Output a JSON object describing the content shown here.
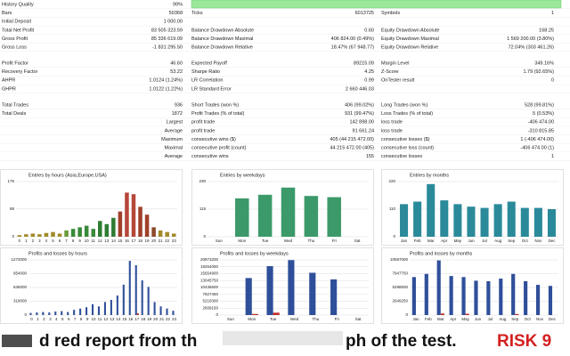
{
  "report": {
    "sections": [
      [
        [
          "History Quality",
          "99%",
          null,
          null,
          null,
          null
        ],
        [
          "Bars",
          "50368",
          "Ticks",
          "6013725",
          "Symbols",
          "1"
        ],
        [
          "Initial Deposit",
          "1 000.00",
          null,
          null,
          null,
          null
        ],
        [
          "Total Net Profit",
          "83 505 323.59",
          "Balance Drawdown Absolute",
          "0.60",
          "Equity Drawdown Absolute",
          "168.25"
        ],
        [
          "Gross Profit",
          "85 336 619.09",
          "Balance Drawdown Maximal",
          "406 824.00 (0.49%)",
          "Equity Drawdown Maximal",
          "1 569 200.00 (3.80%)"
        ],
        [
          "Gross Loss",
          "-1 831 295.50",
          "Balance Drawdown Relative",
          "18.47% (67 948.77)",
          "Equity Drawdown Relative",
          "72.04% (303 461.26)"
        ]
      ],
      [
        [
          "Profit Factor",
          "46.60",
          "Expected Payoff",
          "89215.09",
          "Margin Level",
          "349.16%"
        ],
        [
          "Recovery Factor",
          "53.22",
          "Sharpe Ratio",
          "4.25",
          "Z-Score",
          "1.79 (92.65%)"
        ],
        [
          "AHPR",
          "1.0124 (1.24%)",
          "LR Correlation",
          "0.99",
          "OnTester result",
          "0"
        ],
        [
          "GHPR",
          "1.0122 (1.22%)",
          "LR Standard Error",
          "2 660 446.03",
          null,
          null
        ]
      ],
      [
        [
          "Total Trades",
          "936",
          "Short Trades (won %)",
          "406 (99.02%)",
          "Long Trades (won %)",
          "528 (99.81%)"
        ],
        [
          "Total Deals",
          "1872",
          "Profit Trades (% of total)",
          "931 (99.47%)",
          "Loss Trades (% of total)",
          "5 (0.53%)"
        ],
        [
          "Largest",
          null,
          "profit trade",
          "142 898.00",
          "loss trade",
          "-406 474.00"
        ],
        [
          "Average",
          null,
          "profit trade",
          "91 661.24",
          "loss trade",
          "-310 815.85"
        ],
        [
          "Maximum",
          null,
          "consecutive wins ($)",
          "405 (44 215 472.00)",
          "consecutive losses ($)",
          "1 (-406 474.00)"
        ],
        [
          "Maximal",
          null,
          "consecutive profit (count)",
          "44 215 472.00 (405)",
          "consecutive loss (count)",
          "-406 474.00 (1)"
        ],
        [
          "Average",
          null,
          "consecutive wins",
          "155",
          "consecutive losses",
          "1"
        ]
      ]
    ]
  },
  "charts": [
    {
      "type": "bar",
      "title": "Entries by hours (Asia,Europe,USA)",
      "categories": [
        "0",
        "1",
        "2",
        "3",
        "4",
        "5",
        "6",
        "7",
        "8",
        "9",
        "10",
        "11",
        "12",
        "13",
        "14",
        "15",
        "16",
        "17",
        "18",
        "19",
        "20",
        "21",
        "22",
        "23"
      ],
      "series": [
        {
          "values": [
            5,
            8,
            10,
            8,
            12,
            15,
            10,
            20,
            25,
            30,
            35,
            25,
            50,
            40,
            60,
            80,
            140,
            135,
            95,
            70,
            30,
            20,
            15,
            10
          ],
          "colors": [
            "#a08a2a",
            "#a08a2a",
            "#a08a2a",
            "#a08a2a",
            "#a08a2a",
            "#a08a2a",
            "#a08a2a",
            "#6a9a3a",
            "#3a8a3a",
            "#3a8a3a",
            "#3a8a3a",
            "#3a8a3a",
            "#2e7d32",
            "#2e7d32",
            "#2e7d32",
            "#a0402a",
            "#b5473a",
            "#b5473a",
            "#a0402a",
            "#a0402a",
            "#8a4a2a",
            "#a08a2a",
            "#a08a2a",
            "#a08a2a"
          ]
        }
      ],
      "ylim": [
        0,
        175
      ],
      "yticks": [
        0,
        88,
        175
      ]
    },
    {
      "type": "bar",
      "title": "Entries by weekdays",
      "categories": [
        "Sun",
        "Mon",
        "Tue",
        "Wed",
        "Thu",
        "Fri",
        "Sat"
      ],
      "series": [
        {
          "color": "#3c9a6a",
          "values": [
            0,
            160,
            175,
            205,
            170,
            165,
            0
          ]
        }
      ],
      "ylim": [
        0,
        230
      ],
      "yticks": [
        0,
        115,
        230
      ]
    },
    {
      "type": "bar",
      "title": "Entries by months",
      "categories": [
        "Jan",
        "Feb",
        "Mar",
        "Apr",
        "May",
        "Jun",
        "Jul",
        "Aug",
        "Sep",
        "Oct",
        "Nov",
        "Dec"
      ],
      "series": [
        {
          "color": "#2a8a9a",
          "values": [
            130,
            140,
            210,
            145,
            130,
            120,
            115,
            130,
            140,
            115,
            115,
            110
          ]
        }
      ],
      "ylim": [
        0,
        220
      ],
      "yticks": [
        0,
        110,
        220
      ]
    },
    {
      "type": "bar",
      "title": "Profits and losses by hours",
      "categories": [
        "0",
        "1",
        "2",
        "3",
        "4",
        "5",
        "6",
        "7",
        "8",
        "9",
        "10",
        "11",
        "12",
        "13",
        "14",
        "15",
        "16",
        "17",
        "18",
        "19",
        "20",
        "21",
        "22",
        "23"
      ],
      "series": [
        {
          "color": "#2f4f9a",
          "values": [
            50000,
            60000,
            70000,
            60000,
            80000,
            90000,
            70000,
            120000,
            150000,
            180000,
            250000,
            200000,
            300000,
            350000,
            450000,
            700000,
            1250000,
            1150000,
            800000,
            650000,
            300000,
            200000,
            150000,
            100000
          ]
        },
        {
          "color": "#c0302a",
          "values": [
            0,
            0,
            0,
            0,
            0,
            0,
            0,
            0,
            0,
            0,
            0,
            0,
            0,
            0,
            0,
            0,
            0,
            40000,
            0,
            0,
            0,
            0,
            0,
            0
          ]
        }
      ],
      "ylim": [
        0,
        1272000
      ],
      "yticks": [
        0,
        318000,
        636000,
        954000,
        1272000
      ]
    },
    {
      "type": "bar",
      "title": "Profits and losses by weekdays",
      "categories": [
        "Sun",
        "Mon",
        "Tue",
        "Wed",
        "Thu",
        "Fri",
        "Sat"
      ],
      "series": [
        {
          "color": "#2f4f9a",
          "values": [
            0,
            14000000,
            18500000,
            20800000,
            16000000,
            13500000,
            0
          ]
        },
        {
          "color": "#c0302a",
          "values": [
            0,
            400000,
            900000,
            0,
            0,
            0,
            0
          ]
        }
      ],
      "ylim": [
        0,
        20873200
      ],
      "yticks": [
        0,
        2609150,
        5218300,
        7827450,
        10436600,
        13045750,
        15654900,
        18264050,
        20873200
      ]
    },
    {
      "type": "bar",
      "title": "Profits and losses by months",
      "categories": [
        "Jan",
        "Feb",
        "Mar",
        "Apr",
        "May",
        "Jun",
        "Jul",
        "Aug",
        "Sep",
        "Oct",
        "Nov",
        "Dec"
      ],
      "series": [
        {
          "color": "#2f4f9a",
          "values": [
            7300000,
            7900000,
            10500000,
            7500000,
            7300000,
            6600000,
            6500000,
            7000000,
            7900000,
            6500000,
            5800000,
            5600000
          ]
        },
        {
          "color": "#c0302a",
          "values": [
            0,
            0,
            300000,
            0,
            250000,
            0,
            0,
            0,
            200000,
            0,
            0,
            0
          ]
        }
      ],
      "ylim": [
        0,
        10597000
      ],
      "yticks": [
        0,
        2649250,
        5298500,
        7947750,
        10597000
      ]
    }
  ],
  "caption": {
    "left": "d red report from th",
    "middle": "ph of the test.",
    "risk": "RISK 9"
  }
}
